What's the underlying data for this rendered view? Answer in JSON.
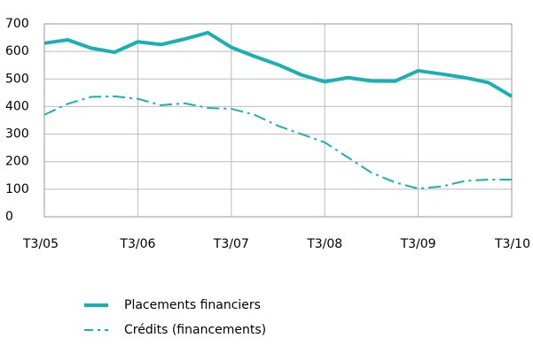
{
  "chart_data": {
    "type": "line",
    "categories": [
      "T3/05",
      null,
      null,
      null,
      "T3/06",
      null,
      null,
      null,
      "T3/07",
      null,
      null,
      null,
      "T3/08",
      null,
      null,
      null,
      "T3/09",
      null,
      null,
      null,
      "T3/10"
    ],
    "series": [
      {
        "name": "Placements financiers",
        "color": "#1aafb0",
        "linestyle": "solid",
        "values": [
          630,
          642,
          612,
          597,
          635,
          625,
          645,
          668,
          615,
          582,
          552,
          515,
          490,
          505,
          493,
          492,
          530,
          518,
          505,
          487,
          437
        ]
      },
      {
        "name": "Crédits (financements)",
        "color": "#1aafb0",
        "linestyle": "dashdot",
        "values": [
          370,
          410,
          435,
          437,
          428,
          405,
          412,
          395,
          392,
          370,
          330,
          300,
          270,
          215,
          160,
          125,
          102,
          110,
          130,
          135,
          135
        ]
      }
    ],
    "ylim": [
      0,
      700
    ],
    "yticks": [
      0,
      100,
      200,
      300,
      400,
      500,
      600,
      700
    ],
    "grid": true
  }
}
